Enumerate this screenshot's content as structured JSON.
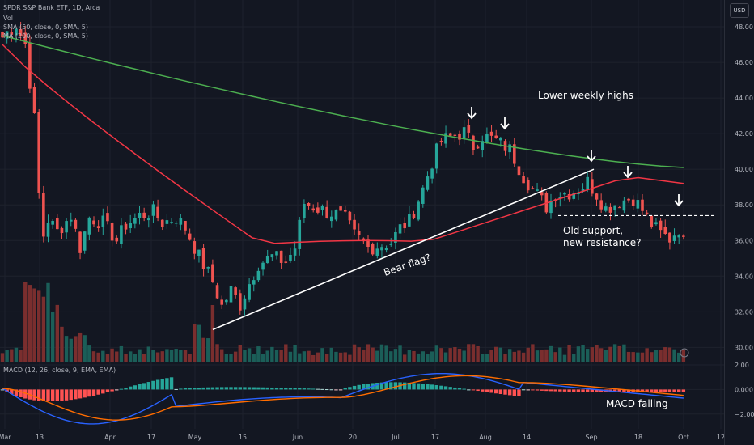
{
  "legend": {
    "symbol": "SPDR S&P Bank ETF, 1D, Arca",
    "volume": "Vol",
    "sma50": "SMA (50, close, 0, SMA, 5)",
    "ma200": "MA (200, close, 0, SMA, 5)",
    "macd": "MACD (12, 26, close, 9, EMA, EMA)"
  },
  "currency_label": "USD",
  "colors": {
    "up": "#26a69a",
    "down": "#ef5350",
    "background": "#131722",
    "sma50": "#f23645",
    "ma200": "#4caf50",
    "macd_line": "#2962ff",
    "signal_line": "#ff6d00",
    "volume_up": "#1b5e58",
    "volume_down": "#7a2e2e"
  },
  "chart_data": [
    {
      "type": "candlestick",
      "x_ticks": [
        "Mar",
        "13",
        "Apr",
        "17",
        "May",
        "15",
        "Jun",
        "20",
        "Jul",
        "17",
        "Aug",
        "14",
        "Sep",
        "18",
        "Oct",
        "12"
      ],
      "y_ticks": [
        30,
        32,
        34,
        36,
        38,
        40,
        42,
        44,
        46,
        48
      ],
      "y_tick_labels": [
        "30.00",
        "32.00",
        "34.00",
        "36.00",
        "38.00",
        "40.00",
        "42.00",
        "44.00",
        "46.00",
        "48.00"
      ],
      "ylim": [
        29.2,
        49.5
      ],
      "series": [
        {
          "name": "SMA (50, close, 0, SMA, 5)",
          "values_start": 47.0,
          "values_end": 39.2
        },
        {
          "name": "MA (200, close, 0, SMA, 5)",
          "values_start": 47.5,
          "values_end": 40.1
        }
      ],
      "close_start": 47.4,
      "close_end": 36.2,
      "annotations": [
        "Lower weekly highs",
        "Bear flag?",
        "Old support, new resistance?"
      ],
      "resistance_level": 37.4
    },
    {
      "type": "bar",
      "name": "Vol"
    },
    {
      "type": "line",
      "name": "MACD (12, 26, close, 9, EMA, EMA)",
      "y_ticks": [
        2.0,
        0.0,
        -2.0
      ],
      "y_tick_labels": [
        "2.00",
        "0.000",
        "−2.00"
      ],
      "ylim": [
        -3.2,
        2.2
      ],
      "annotations": [
        "MACD falling"
      ]
    }
  ]
}
